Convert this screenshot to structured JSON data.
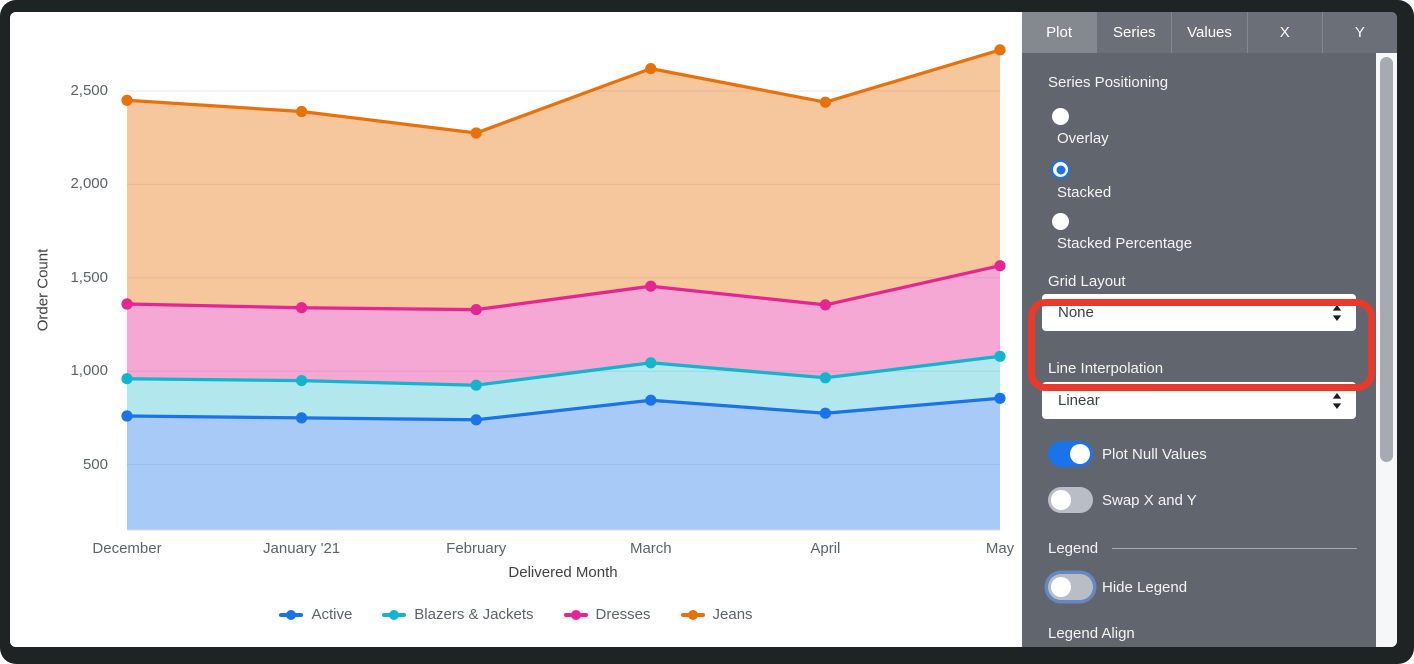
{
  "chart_data": {
    "type": "area",
    "stacked": true,
    "title": "",
    "xlabel": "Delivered Month",
    "ylabel": "Order Count",
    "categories": [
      "December",
      "January '21",
      "February",
      "March",
      "April",
      "May"
    ],
    "series": [
      {
        "name": "Active",
        "color": "#1a73e8",
        "fill": "rgba(26,115,232,0.38)",
        "values": [
          760,
          750,
          740,
          845,
          775,
          855
        ]
      },
      {
        "name": "Blazers & Jackets",
        "color": "#12b5cb",
        "fill": "rgba(18,181,203,0.32)",
        "values": [
          200,
          200,
          185,
          200,
          190,
          225
        ]
      },
      {
        "name": "Dresses",
        "color": "#e52592",
        "fill": "rgba(229,37,146,0.40)",
        "values": [
          400,
          390,
          405,
          410,
          390,
          485
        ]
      },
      {
        "name": "Jeans",
        "color": "#e8710a",
        "fill": "rgba(232,113,10,0.40)",
        "values": [
          1090,
          1050,
          945,
          1165,
          1085,
          1155
        ]
      }
    ],
    "y_ticks": [
      {
        "value": 500,
        "label": "500"
      },
      {
        "value": 1000,
        "label": "1,000"
      },
      {
        "value": 1500,
        "label": "1,500"
      },
      {
        "value": 2000,
        "label": "2,000"
      },
      {
        "value": 2500,
        "label": "2,500"
      }
    ],
    "ylim": [
      150,
      2790
    ],
    "grid": "horizontal",
    "legend_position": "bottom"
  },
  "panel": {
    "tabs": [
      {
        "label": "Plot",
        "active": true
      },
      {
        "label": "Series",
        "active": false
      },
      {
        "label": "Values",
        "active": false
      },
      {
        "label": "X",
        "active": false
      },
      {
        "label": "Y",
        "active": false
      }
    ],
    "series_positioning": {
      "label": "Series Positioning",
      "options": [
        {
          "label": "Overlay",
          "selected": false
        },
        {
          "label": "Stacked",
          "selected": true
        },
        {
          "label": "Stacked Percentage",
          "selected": false
        }
      ]
    },
    "grid_layout": {
      "label": "Grid Layout",
      "value": "None",
      "highlighted": true,
      "highlight_color": "#e8392b"
    },
    "line_interpolation": {
      "label": "Line Interpolation",
      "value": "Linear"
    },
    "toggles": [
      {
        "label": "Plot Null Values",
        "on": true
      },
      {
        "label": "Swap X and Y",
        "on": false
      }
    ],
    "legend_section": {
      "header": "Legend",
      "hide_legend": {
        "label": "Hide Legend",
        "on": false
      },
      "legend_align_label": "Legend Align"
    }
  },
  "colors": {
    "accent_blue": "#1a73e8",
    "panel_background": "#61666e",
    "annotation_red": "#e8392b",
    "axis_text": "#5f6368"
  }
}
